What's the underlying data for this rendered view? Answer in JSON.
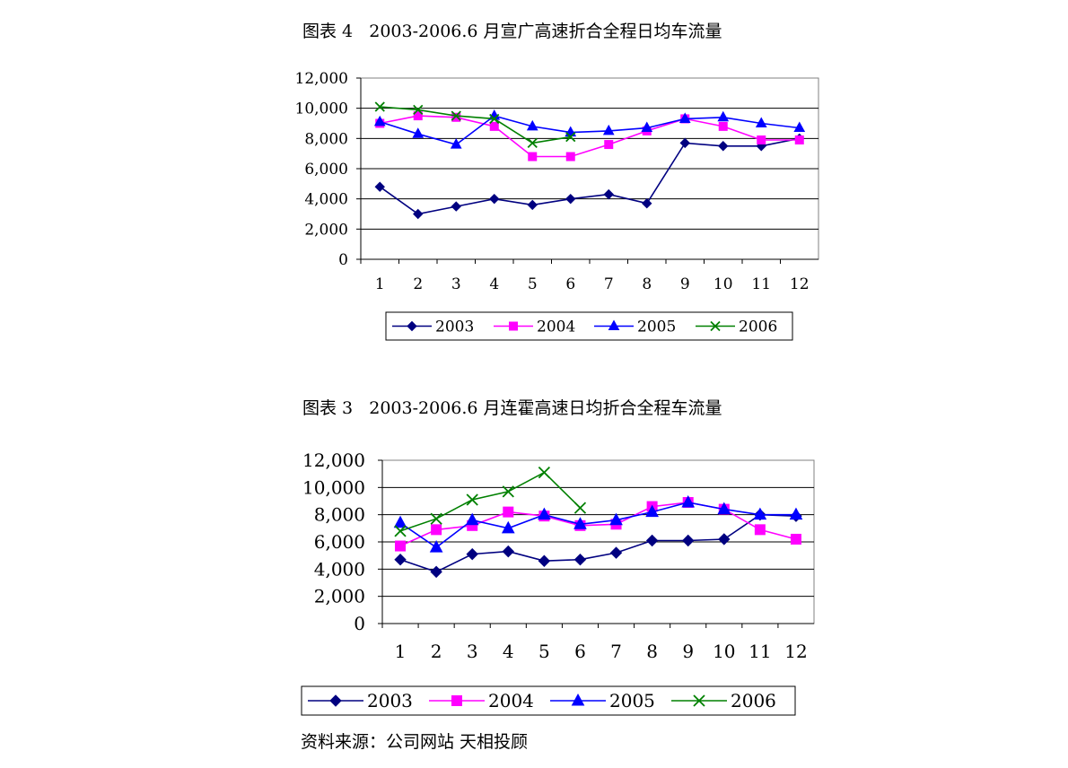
{
  "chart_data": [
    {
      "type": "line",
      "title": "图表 4   2003-2006.6 月宣广高速折合全程日均车流量",
      "categories": [
        "1",
        "2",
        "3",
        "4",
        "5",
        "6",
        "7",
        "8",
        "9",
        "10",
        "11",
        "12"
      ],
      "ylim": [
        0,
        12000
      ],
      "yticks": [
        "0",
        "2,000",
        "4,000",
        "6,000",
        "8,000",
        "10,000",
        "12,000"
      ],
      "grid": true,
      "legend": "bottom",
      "series": [
        {
          "name": "2003",
          "color": "#000080",
          "marker": "diamond",
          "values": [
            4800,
            3000,
            3500,
            4000,
            3600,
            4000,
            4300,
            3700,
            7700,
            7500,
            7500,
            8000
          ]
        },
        {
          "name": "2004",
          "color": "#FF00FF",
          "marker": "square",
          "values": [
            9000,
            9500,
            9400,
            8800,
            6800,
            6800,
            7600,
            8500,
            9300,
            8800,
            7900,
            7900
          ]
        },
        {
          "name": "2005",
          "color": "#0000FF",
          "marker": "triangle",
          "values": [
            9100,
            8300,
            7600,
            9500,
            8800,
            8400,
            8500,
            8700,
            9300,
            9400,
            9000,
            8700
          ]
        },
        {
          "name": "2006",
          "color": "#008000",
          "marker": "x",
          "values": [
            10100,
            9900,
            9500,
            9300,
            7700,
            8100,
            null,
            null,
            null,
            null,
            null,
            null
          ]
        }
      ]
    },
    {
      "type": "line",
      "title": "图表 3   2003-2006.6 月连霍高速日均折合全程车流量",
      "categories": [
        "1",
        "2",
        "3",
        "4",
        "5",
        "6",
        "7",
        "8",
        "9",
        "10",
        "11",
        "12"
      ],
      "ylim": [
        0,
        12000
      ],
      "yticks": [
        "0",
        "2,000",
        "4,000",
        "6,000",
        "8,000",
        "10,000",
        "12,000"
      ],
      "grid": true,
      "legend": "bottom",
      "series": [
        {
          "name": "2003",
          "color": "#000080",
          "marker": "diamond",
          "values": [
            4700,
            3800,
            5100,
            5300,
            4600,
            4700,
            5200,
            6100,
            6100,
            6200,
            8000,
            7900
          ]
        },
        {
          "name": "2004",
          "color": "#FF00FF",
          "marker": "square",
          "values": [
            5700,
            6900,
            7200,
            8200,
            7900,
            7200,
            7300,
            8600,
            8900,
            8400,
            6900,
            6200
          ]
        },
        {
          "name": "2005",
          "color": "#0000FF",
          "marker": "triangle",
          "values": [
            7400,
            5600,
            7600,
            7000,
            8000,
            7300,
            7600,
            8200,
            8900,
            8400,
            8000,
            8000
          ]
        },
        {
          "name": "2006",
          "color": "#008000",
          "marker": "x",
          "values": [
            6800,
            7700,
            9100,
            9700,
            11100,
            8500,
            null,
            null,
            null,
            null,
            null,
            null
          ]
        }
      ]
    }
  ],
  "source": "资料来源：公司网站 天相投顾"
}
